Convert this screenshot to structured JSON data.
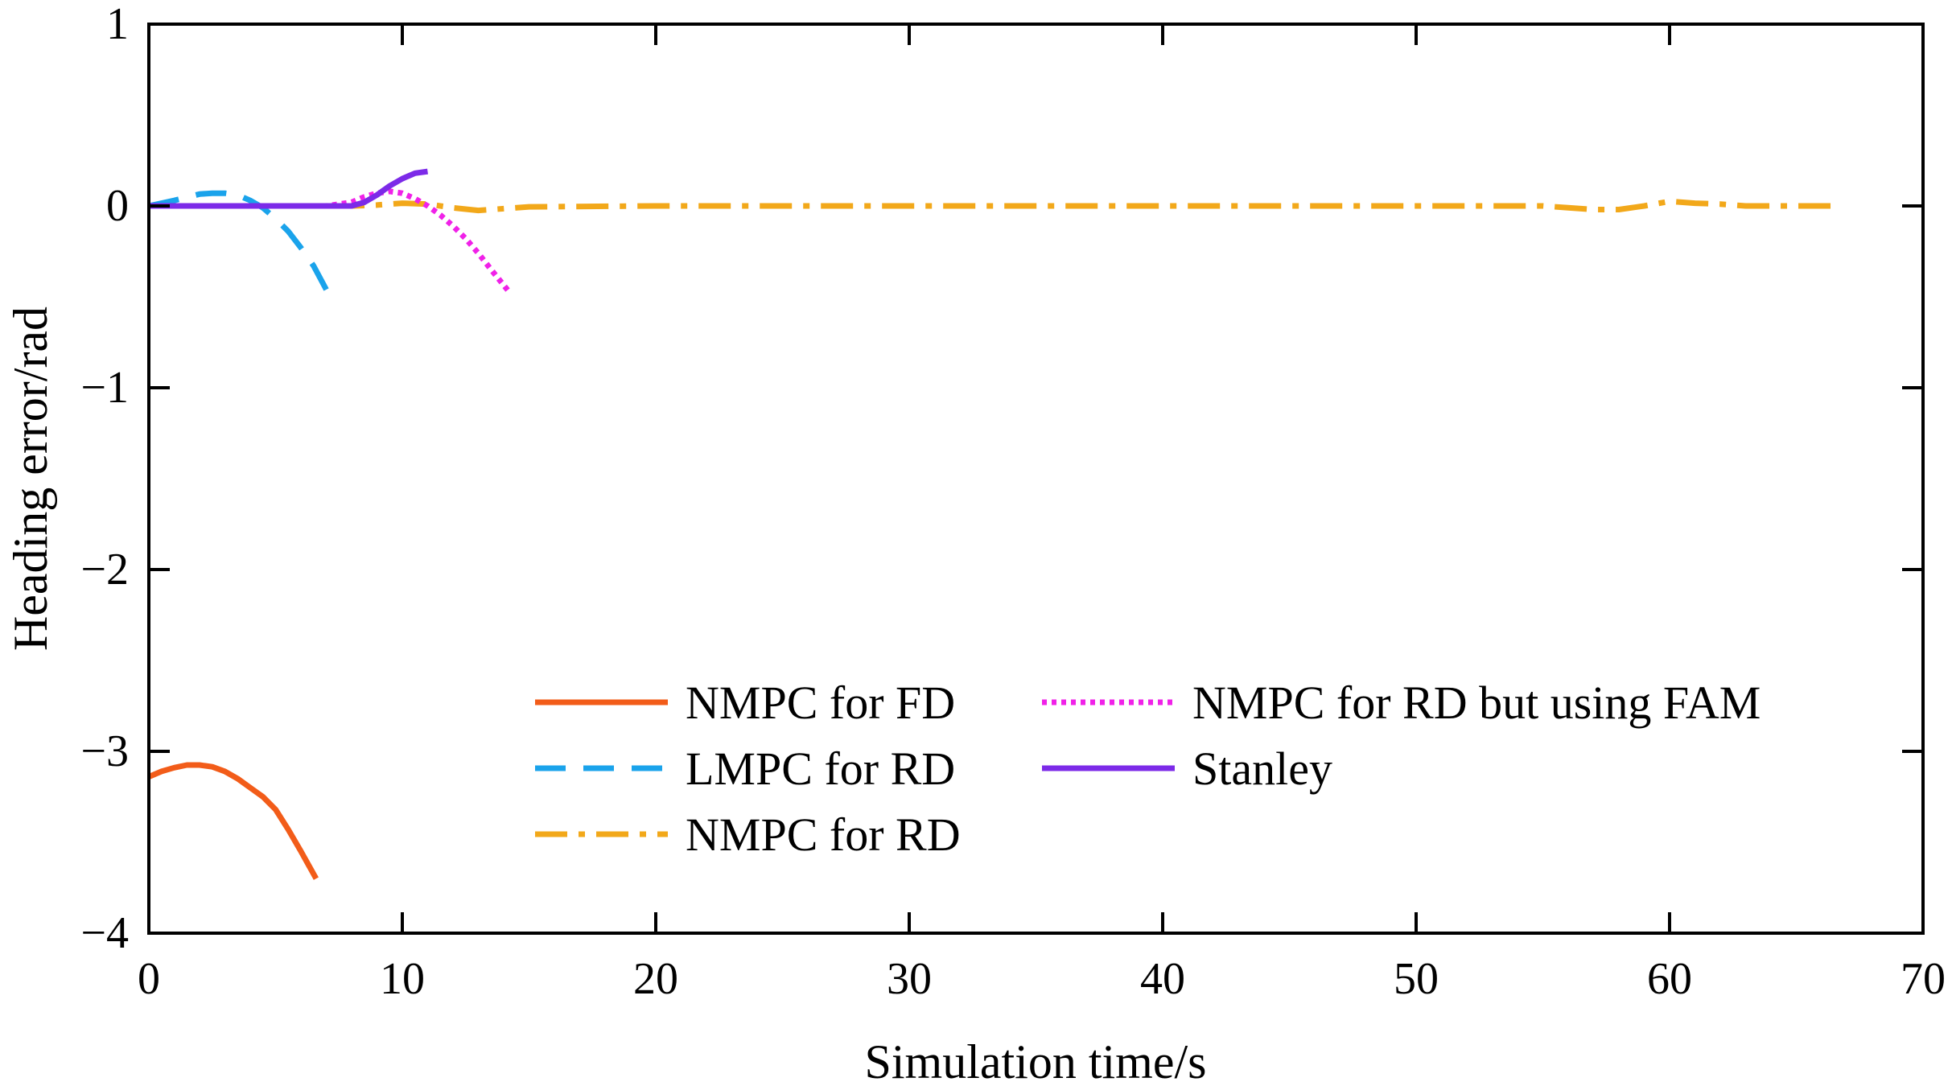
{
  "chart_data": {
    "type": "line",
    "title": "",
    "xlabel": "Simulation time/s",
    "ylabel": "Heading error/rad",
    "xlim": [
      0,
      70
    ],
    "ylim": [
      -4,
      1
    ],
    "xticks": [
      0,
      10,
      20,
      30,
      40,
      50,
      60,
      70
    ],
    "yticks": [
      -4,
      -3,
      -2,
      -1,
      0,
      1
    ],
    "xtick_labels": [
      "0",
      "10",
      "20",
      "30",
      "40",
      "50",
      "60",
      "70"
    ],
    "ytick_labels": [
      "−4",
      "−3",
      "−2",
      "−1",
      "0",
      "1"
    ],
    "grid": false,
    "legend_position": "bottom-right",
    "series": [
      {
        "name": "NMPC for FD",
        "color": "#F25C19",
        "style": "solid",
        "x": [
          0,
          0.5,
          1,
          1.5,
          2,
          2.5,
          3,
          3.5,
          4,
          4.5,
          5,
          5.5,
          6,
          6.6
        ],
        "y": [
          -3.14,
          -3.11,
          -3.09,
          -3.075,
          -3.075,
          -3.085,
          -3.11,
          -3.15,
          -3.2,
          -3.25,
          -3.32,
          -3.43,
          -3.55,
          -3.7
        ]
      },
      {
        "name": "LMPC for RD",
        "color": "#1AA3EB",
        "style": "dashed",
        "x": [
          0,
          1,
          2,
          2.5,
          3,
          3.5,
          4,
          4.5,
          5,
          5.5,
          6,
          6.5,
          7
        ],
        "y": [
          0,
          0.03,
          0.065,
          0.07,
          0.07,
          0.06,
          0.03,
          -0.01,
          -0.07,
          -0.14,
          -0.23,
          -0.33,
          -0.46
        ]
      },
      {
        "name": "NMPC for RD",
        "color": "#F2A81A",
        "style": "dashdot",
        "x": [
          0,
          5,
          8,
          9,
          10,
          11,
          12,
          13,
          14,
          15,
          20,
          30,
          40,
          50,
          55,
          56,
          57,
          58,
          59,
          60,
          61,
          62,
          63,
          66.7
        ],
        "y": [
          0,
          0,
          0,
          0.005,
          0.015,
          0.01,
          -0.01,
          -0.025,
          -0.015,
          -0.005,
          0,
          0,
          0,
          0,
          0,
          -0.01,
          -0.02,
          -0.02,
          0,
          0.025,
          0.015,
          0.01,
          0,
          0
        ]
      },
      {
        "name": "NMPC for RD but using FAM",
        "color": "#F021E8",
        "style": "dotted",
        "x": [
          0,
          5,
          7,
          8,
          8.5,
          9,
          9.5,
          10,
          10.5,
          11,
          11.5,
          12,
          12.5,
          13,
          13.5,
          14.2
        ],
        "y": [
          0,
          0,
          0,
          0.02,
          0.05,
          0.07,
          0.08,
          0.07,
          0.04,
          0,
          -0.05,
          -0.11,
          -0.18,
          -0.26,
          -0.35,
          -0.47
        ]
      },
      {
        "name": "Stanley",
        "color": "#7C2AE8",
        "style": "solid",
        "x": [
          0,
          5,
          8,
          8.5,
          9,
          9.5,
          10,
          10.5,
          11
        ],
        "y": [
          0,
          0,
          0,
          0.02,
          0.06,
          0.11,
          0.15,
          0.18,
          0.19
        ]
      }
    ]
  }
}
